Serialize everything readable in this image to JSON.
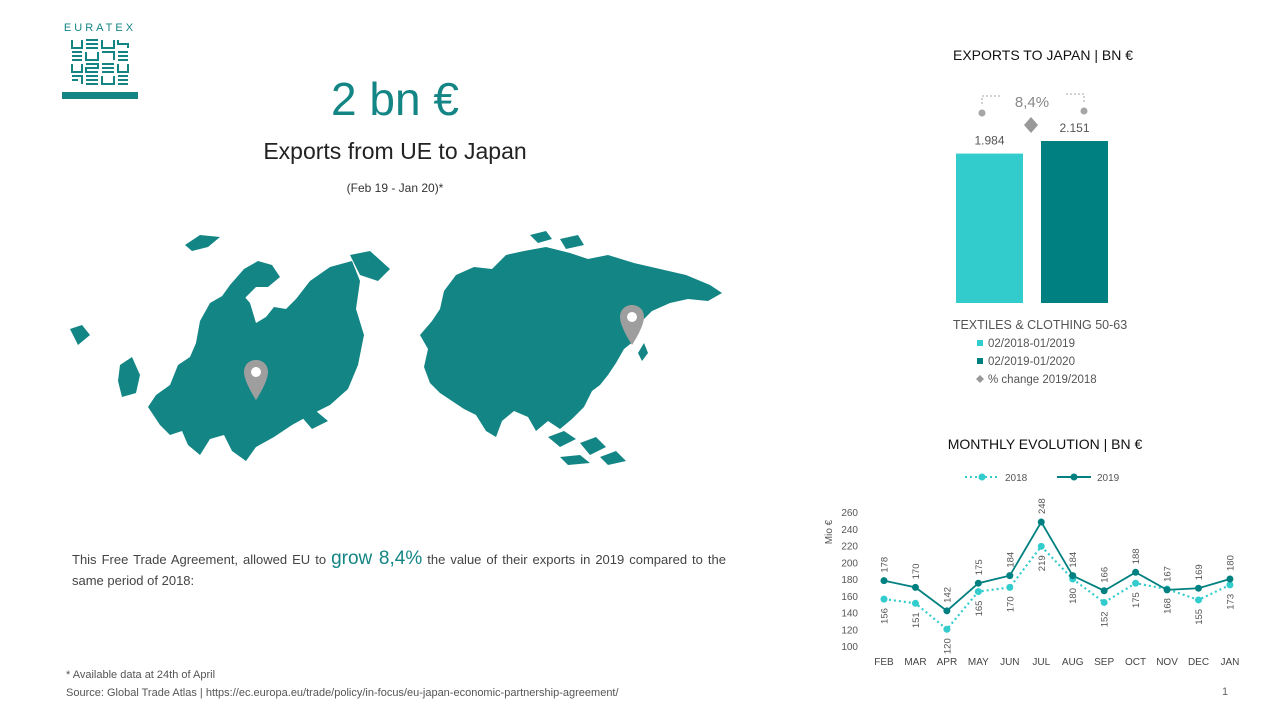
{
  "logo": {
    "text": "EURATEX"
  },
  "headline": "2 bn €",
  "subheadline": "Exports from UE to Japan",
  "period": "(Feb 19 - Jan 20)*",
  "body": {
    "before": "This Free Trade Agreement, allowed EU to ",
    "highlight": "grow  8,4%",
    "after": "  the value of their exports in 2019 compared to the same period of 2018:"
  },
  "footnote": "* Available data at 24th of April",
  "source": "Source: Global Trade Atlas | https://ec.europa.eu/trade/policy/in-focus/eu-japan-economic-partnership-agreement/",
  "page_number": "1",
  "colors": {
    "teal_light": "#33CCCC",
    "teal_dark": "#008080",
    "grey": "#A6A6A6",
    "map": "#138584"
  },
  "icons": {
    "map": "world-map-eurasia",
    "pins": [
      "location-pin-europe-icon",
      "location-pin-japan-icon"
    ]
  },
  "chart_data": [
    {
      "type": "bar",
      "title": "EXPORTS TO JAPAN | BN €",
      "categories": [
        "TEXTILES & CLOTHING 50-63"
      ],
      "series": [
        {
          "name": "02/2018-01/2019",
          "values": [
            1.984
          ],
          "labels": [
            "1.984"
          ],
          "color": "#33CCCC"
        },
        {
          "name": "02/2019-01/2020",
          "values": [
            2.151
          ],
          "labels": [
            "2.151"
          ],
          "color": "#008080"
        }
      ],
      "change": {
        "name": "% change 2019/2018",
        "label": "8,4%",
        "value": 8.4,
        "color": "#A6A6A6"
      },
      "legend": "bottom"
    },
    {
      "type": "line",
      "title": "MONTHLY EVOLUTION | BN €",
      "ylabel": "Mio €",
      "ylim": [
        100,
        260
      ],
      "yticks": [
        100,
        120,
        140,
        160,
        180,
        200,
        220,
        240,
        260
      ],
      "categories": [
        "FEB",
        "MAR",
        "APR",
        "MAY",
        "JUN",
        "JUL",
        "AUG",
        "SEP",
        "OCT",
        "NOV",
        "DEC",
        "JAN"
      ],
      "series": [
        {
          "name": "2018",
          "style": "dotted",
          "color": "#33CCCC",
          "values": [
            156,
            151,
            120,
            165,
            170,
            219,
            180,
            152,
            175,
            168,
            155,
            173
          ]
        },
        {
          "name": "2019",
          "style": "solid",
          "color": "#008080",
          "values": [
            178,
            170,
            142,
            175,
            184,
            248,
            184,
            166,
            188,
            167,
            169,
            180
          ]
        }
      ],
      "legend": "top",
      "grid": false
    }
  ]
}
